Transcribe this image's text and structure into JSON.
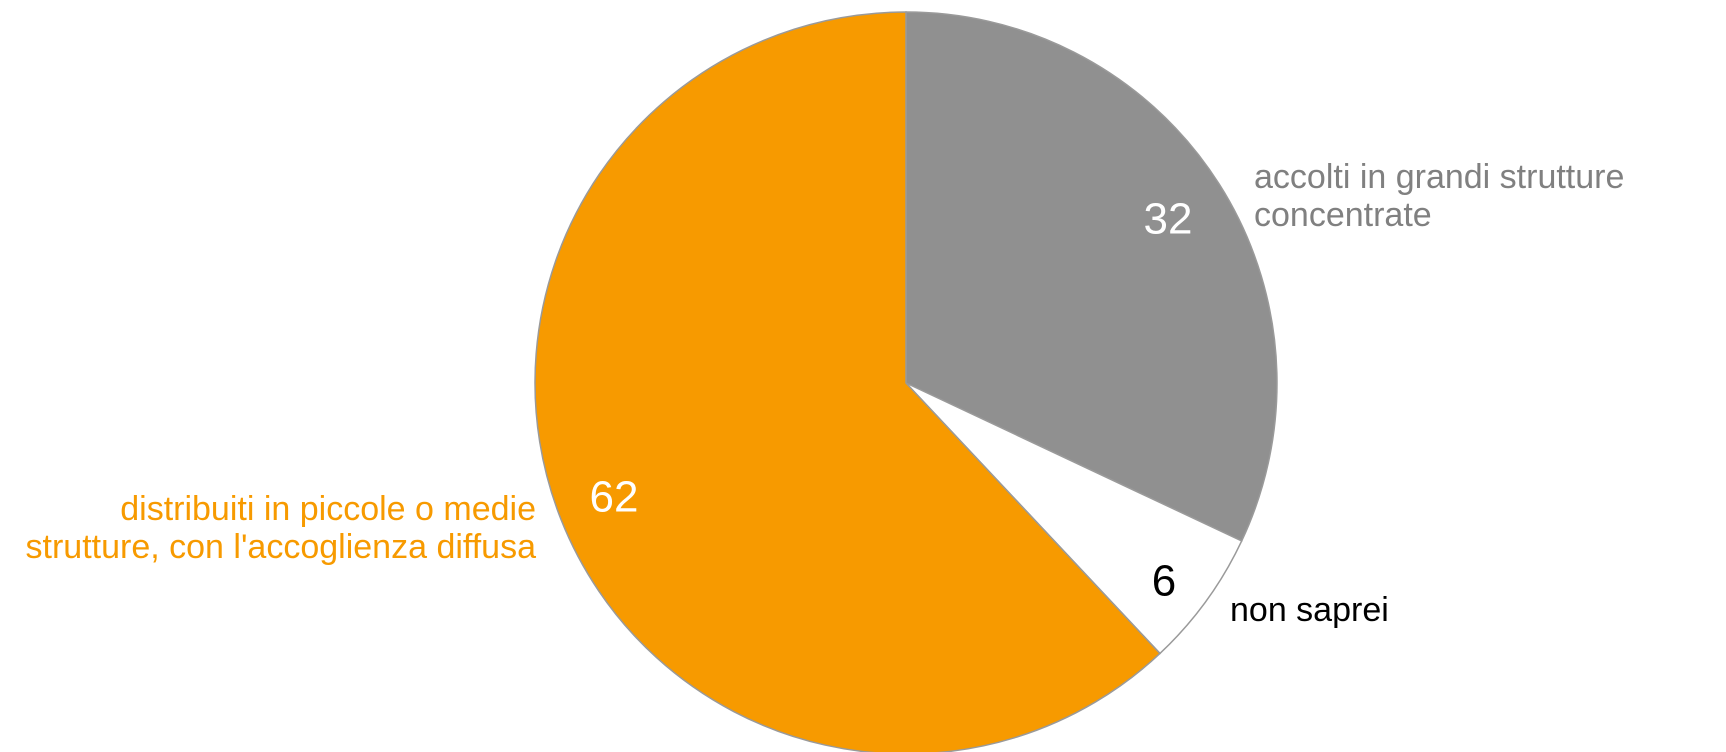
{
  "chart_data": {
    "type": "pie",
    "categories": [
      "accolti in grandi strutture concentrate",
      "non saprei",
      "distribuiti in piccole o medie strutture, con l'accoglienza diffusa"
    ],
    "values": [
      32,
      6,
      62
    ],
    "colors": [
      "#909090",
      "#ffffff",
      "#f79a00"
    ]
  }
}
